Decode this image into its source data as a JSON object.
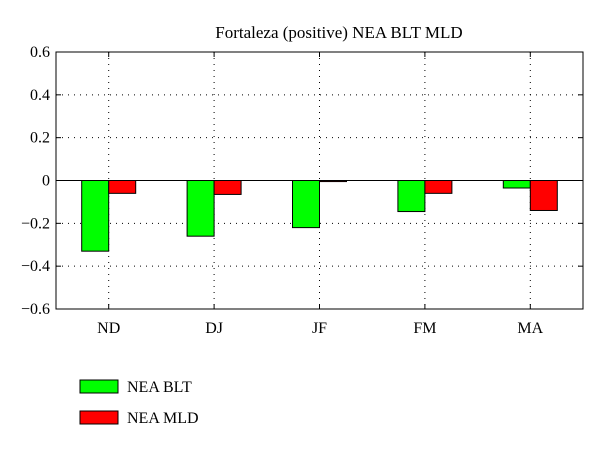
{
  "chart_data": {
    "type": "bar",
    "title": "Fortaleza (positive) NEA BLT MLD",
    "xlabel": "",
    "ylabel": "",
    "categories": [
      "ND",
      "DJ",
      "JF",
      "FM",
      "MA"
    ],
    "series": [
      {
        "name": "NEA BLT",
        "color": "#00ff00",
        "values": [
          -0.33,
          -0.26,
          -0.22,
          -0.145,
          -0.035
        ]
      },
      {
        "name": "NEA MLD",
        "color": "#ff0000",
        "values": [
          -0.06,
          -0.065,
          -0.005,
          -0.06,
          -0.14
        ]
      }
    ],
    "ylim": [
      -0.6,
      0.6
    ],
    "yticks": [
      "−0.6",
      "−0.4",
      "−0.2",
      "0",
      "0.2",
      "0.4",
      "0.6"
    ],
    "ytick_values": [
      -0.6,
      -0.4,
      -0.2,
      0,
      0.2,
      0.4,
      0.6
    ],
    "grid": true,
    "legend": "below-left"
  }
}
